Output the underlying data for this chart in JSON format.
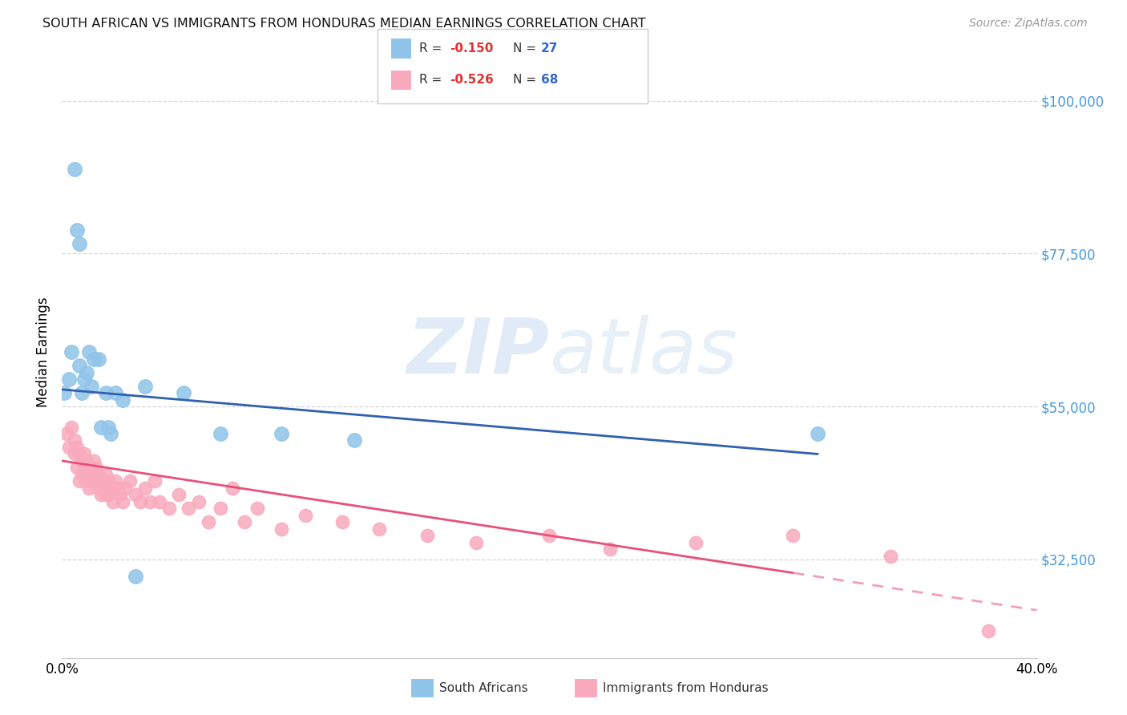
{
  "title": "SOUTH AFRICAN VS IMMIGRANTS FROM HONDURAS MEDIAN EARNINGS CORRELATION CHART",
  "source": "Source: ZipAtlas.com",
  "ylabel": "Median Earnings",
  "xlim": [
    0.0,
    0.4
  ],
  "ylim": [
    18000,
    108000
  ],
  "color_blue": "#90C4E8",
  "color_pink": "#F9AABC",
  "color_blue_line": "#3060B0",
  "color_pink_line": "#E8507A",
  "color_pink_line_dashed": "#F0A0B8",
  "background_color": "#FFFFFF",
  "grid_color": "#CCCCCC",
  "blue_x": [
    0.001,
    0.003,
    0.004,
    0.005,
    0.006,
    0.007,
    0.007,
    0.008,
    0.009,
    0.01,
    0.011,
    0.012,
    0.013,
    0.015,
    0.016,
    0.018,
    0.019,
    0.02,
    0.022,
    0.025,
    0.03,
    0.034,
    0.05,
    0.065,
    0.09,
    0.12,
    0.31
  ],
  "blue_y": [
    57000,
    59000,
    63000,
    90000,
    81000,
    61000,
    79000,
    57000,
    59000,
    60000,
    63000,
    58000,
    62000,
    62000,
    52000,
    57000,
    52000,
    51000,
    57000,
    56000,
    30000,
    58000,
    57000,
    51000,
    51000,
    50000,
    51000
  ],
  "pink_x": [
    0.002,
    0.003,
    0.004,
    0.005,
    0.005,
    0.006,
    0.006,
    0.007,
    0.007,
    0.008,
    0.008,
    0.009,
    0.009,
    0.01,
    0.01,
    0.011,
    0.011,
    0.012,
    0.012,
    0.013,
    0.013,
    0.014,
    0.014,
    0.015,
    0.015,
    0.016,
    0.016,
    0.017,
    0.017,
    0.018,
    0.018,
    0.019,
    0.019,
    0.02,
    0.021,
    0.022,
    0.023,
    0.024,
    0.025,
    0.026,
    0.028,
    0.03,
    0.032,
    0.034,
    0.036,
    0.038,
    0.04,
    0.044,
    0.048,
    0.052,
    0.056,
    0.06,
    0.065,
    0.07,
    0.075,
    0.08,
    0.09,
    0.1,
    0.115,
    0.13,
    0.15,
    0.17,
    0.2,
    0.225,
    0.26,
    0.3,
    0.34,
    0.38
  ],
  "pink_y": [
    51000,
    49000,
    52000,
    50000,
    48000,
    49000,
    46000,
    48000,
    44000,
    47000,
    45000,
    48000,
    45000,
    47000,
    44000,
    45000,
    43000,
    46000,
    44000,
    47000,
    45000,
    46000,
    44000,
    45000,
    43000,
    44000,
    42000,
    44000,
    43000,
    45000,
    42000,
    44000,
    42000,
    43000,
    41000,
    44000,
    43000,
    42000,
    41000,
    43000,
    44000,
    42000,
    41000,
    43000,
    41000,
    44000,
    41000,
    40000,
    42000,
    40000,
    41000,
    38000,
    40000,
    43000,
    38000,
    40000,
    37000,
    39000,
    38000,
    37000,
    36000,
    35000,
    36000,
    34000,
    35000,
    36000,
    33000,
    22000
  ]
}
